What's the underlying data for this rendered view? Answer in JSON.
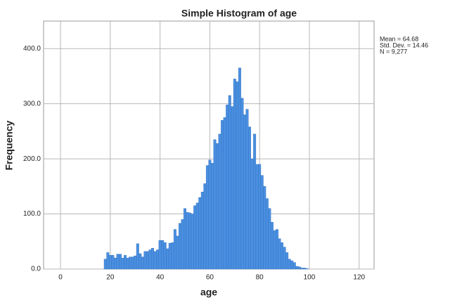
{
  "chart_data": {
    "type": "histogram",
    "title": "Simple Histogram of age",
    "x_label": "age",
    "y_label": "Frequency",
    "stats": [
      "Mean = 64.68",
      "Std. Dev. = 14.46",
      "N = 9,277"
    ],
    "bins": [
      17.5,
      18.5,
      19.5,
      20.5,
      21.5,
      22.5,
      23.5,
      24.5,
      25.5,
      26.5,
      27.5,
      28.5,
      29.5,
      30.5,
      31.5,
      32.5,
      33.5,
      34.5,
      35.5,
      36.5,
      37.5,
      38.5,
      39.5,
      40.5,
      41.5,
      42.5,
      43.5,
      44.5,
      45.5,
      46.5,
      47.5,
      48.5,
      49.5,
      50.5,
      51.5,
      52.5,
      53.5,
      54.5,
      55.5,
      56.5,
      57.5,
      58.5,
      59.5,
      60.5,
      61.5,
      62.5,
      63.5,
      64.5,
      65.5,
      66.5,
      67.5,
      68.5,
      69.5,
      70.5,
      71.5,
      72.5,
      73.5,
      74.5,
      75.5,
      76.5,
      77.5,
      78.5,
      79.5,
      80.5,
      81.5,
      82.5,
      83.5,
      84.5,
      85.5,
      86.5,
      87.5,
      88.5,
      89.5,
      90.5,
      91.5,
      92.5,
      93.5,
      94.5,
      95.5,
      96.5,
      97.5,
      98.5,
      99.5
    ],
    "values": [
      18,
      30,
      25,
      25,
      20,
      27,
      27,
      20,
      25,
      20,
      22,
      22,
      24,
      46,
      28,
      22,
      32,
      32,
      35,
      38,
      32,
      35,
      52,
      52,
      48,
      37,
      47,
      48,
      72,
      60,
      83,
      90,
      110,
      103,
      102,
      100,
      115,
      120,
      130,
      140,
      155,
      188,
      198,
      192,
      235,
      228,
      245,
      270,
      275,
      298,
      315,
      295,
      345,
      340,
      365,
      310,
      280,
      290,
      258,
      200,
      245,
      190,
      190,
      170,
      150,
      128,
      110,
      85,
      70,
      72,
      55,
      48,
      40,
      30,
      18,
      15,
      12,
      5,
      4,
      2,
      2,
      1
    ],
    "color": "#4a8fe0",
    "xlim": [
      -6.8,
      126
    ],
    "ylim": [
      0,
      450
    ],
    "xticks": [
      0,
      20,
      40,
      60,
      80,
      100,
      120
    ],
    "yticks": [
      {
        "value": 0,
        "label": "0.0"
      },
      {
        "value": 100,
        "label": "100.0"
      },
      {
        "value": 200,
        "label": "200.0"
      },
      {
        "value": 300,
        "label": "300.0"
      },
      {
        "value": 400,
        "label": "400.0"
      }
    ],
    "grid": true
  }
}
